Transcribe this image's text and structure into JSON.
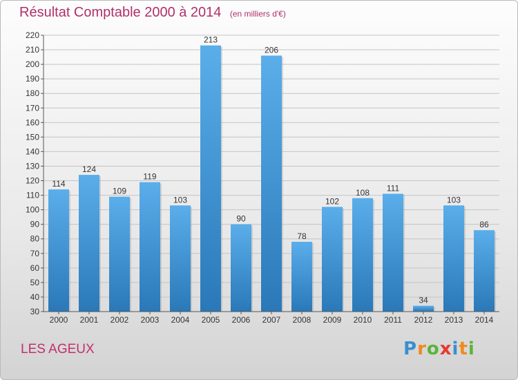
{
  "header": {
    "title": "Résultat Comptable 2000 à 2014",
    "subtitle": "(en milliers d'€)"
  },
  "footer": {
    "commune": "LES AGEUX",
    "logo_text": "Proxiti"
  },
  "colors": {
    "title": "#b0306a",
    "bar_top": "#5aaeea",
    "bar_bottom": "#2a78b8",
    "grid": "#c4c4c4"
  },
  "chart_data": {
    "type": "bar",
    "categories": [
      "2000",
      "2001",
      "2002",
      "2003",
      "2004",
      "2005",
      "2006",
      "2007",
      "2008",
      "2009",
      "2010",
      "2011",
      "2012",
      "2013",
      "2014"
    ],
    "values": [
      114,
      124,
      109,
      119,
      103,
      213,
      90,
      206,
      78,
      102,
      108,
      111,
      34,
      103,
      86
    ],
    "title": "Résultat Comptable 2000 à 2014",
    "subtitle": "(en milliers d'€)",
    "xlabel": "",
    "ylabel": "",
    "ylim": [
      30,
      220
    ],
    "yticks": [
      30,
      40,
      50,
      60,
      70,
      80,
      90,
      100,
      110,
      120,
      130,
      140,
      150,
      160,
      170,
      180,
      190,
      200,
      210,
      220
    ],
    "grid": true,
    "data_labels": true
  }
}
